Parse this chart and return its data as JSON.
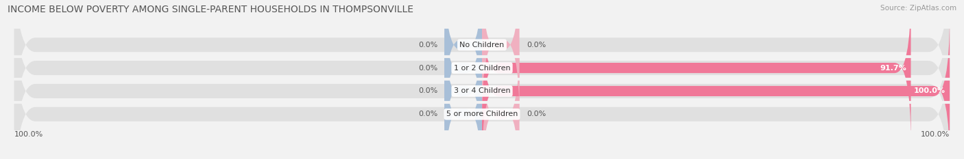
{
  "title": "INCOME BELOW POVERTY AMONG SINGLE-PARENT HOUSEHOLDS IN THOMPSONVILLE",
  "source": "Source: ZipAtlas.com",
  "categories": [
    "No Children",
    "1 or 2 Children",
    "3 or 4 Children",
    "5 or more Children"
  ],
  "single_father": [
    0.0,
    0.0,
    0.0,
    0.0
  ],
  "single_mother": [
    0.0,
    91.7,
    100.0,
    0.0
  ],
  "father_color": "#a8bfd8",
  "mother_color": "#f07898",
  "bg_color": "#f2f2f2",
  "bar_row_color": "#e8e8e8",
  "bar_bg_left_color": "#dce8f0",
  "bar_bg_right_color": "#f5d8e0",
  "axis_left_label": "100.0%",
  "axis_right_label": "100.0%",
  "title_fontsize": 10,
  "source_fontsize": 7.5,
  "label_fontsize": 8,
  "bar_height": 0.62,
  "max_val": 100.0,
  "father_stub_val": 8.0,
  "mother_stub_val": 8.0
}
